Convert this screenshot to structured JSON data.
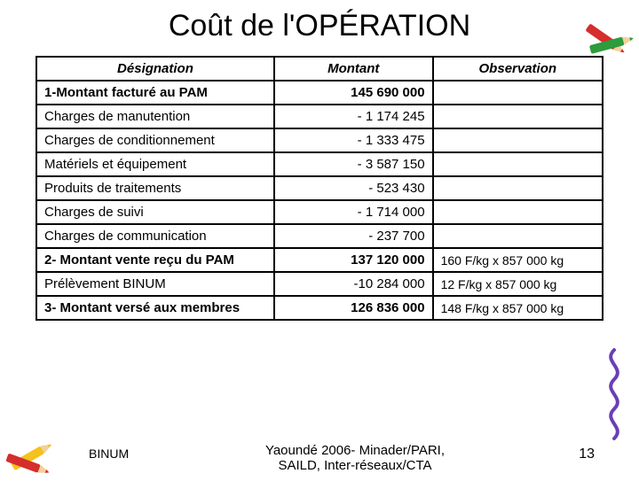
{
  "title": "Coût de l'OPÉRATION",
  "table": {
    "columns": [
      "Désignation",
      "Montant",
      "Observation"
    ],
    "rows": [
      {
        "designation": "1-Montant facturé au PAM",
        "montant": "145 690 000",
        "observation": "",
        "bold": true
      },
      {
        "designation": "Charges de manutention",
        "montant": "- 1 174 245",
        "observation": "",
        "bold": false
      },
      {
        "designation": "Charges de conditionnement",
        "montant": "- 1 333 475",
        "observation": "",
        "bold": false
      },
      {
        "designation": "Matériels et équipement",
        "montant": "- 3 587 150",
        "observation": "",
        "bold": false
      },
      {
        "designation": "Produits de traitements",
        "montant": "- 523 430",
        "observation": "",
        "bold": false
      },
      {
        "designation": "Charges de suivi",
        "montant": "- 1 714 000",
        "observation": "",
        "bold": false
      },
      {
        "designation": "Charges de communication",
        "montant": "- 237 700",
        "observation": "",
        "bold": false
      },
      {
        "designation": "2- Montant vente reçu du PAM",
        "montant": "137 120 000",
        "observation": "160 F/kg x 857 000 kg",
        "bold": true
      },
      {
        "designation": "Prélèvement BINUM",
        "montant": "-10 284 000",
        "observation": "12 F/kg x 857 000 kg",
        "bold": false
      },
      {
        "designation": "3- Montant versé aux membres",
        "montant": "126 836 000",
        "observation": "148 F/kg x 857 000 kg",
        "bold": true
      }
    ],
    "header_fontsize": 15,
    "cell_fontsize": 15,
    "border_color": "#000000",
    "background_color": "#ffffff"
  },
  "footer": {
    "left": "BINUM",
    "center_line1": "Yaoundé 2006- Minader/PARI,",
    "center_line2": "SAILD, Inter-réseaux/CTA",
    "slide_number": "13"
  },
  "decor": {
    "crayon_colors": {
      "tl1": "#d62d2d",
      "tl2": "#2e9b3c",
      "bl1": "#f3c21b",
      "bl2": "#d62d2d",
      "br": "#6a3fb5"
    }
  }
}
